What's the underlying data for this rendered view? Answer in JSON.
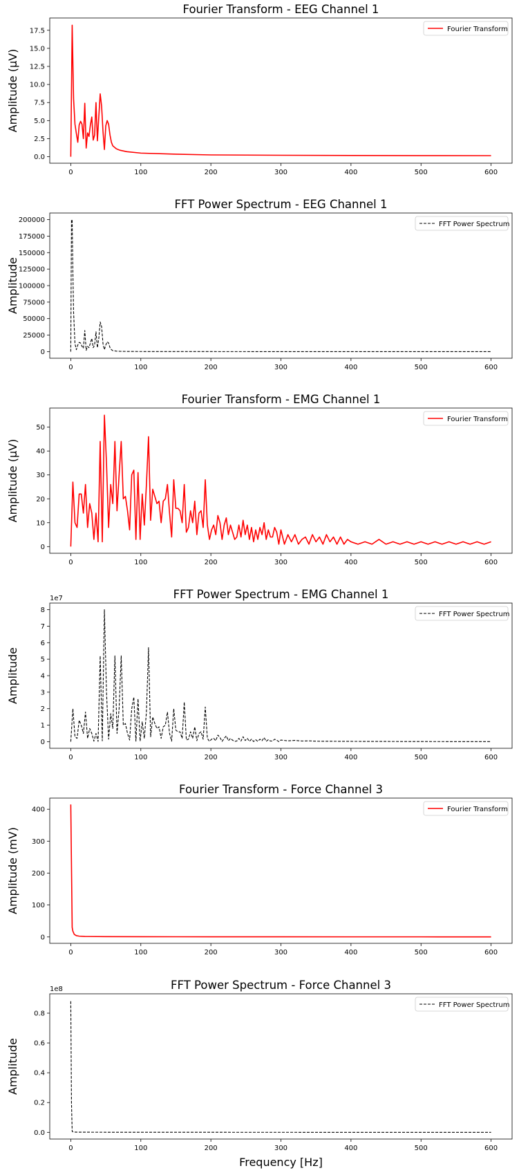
{
  "chart_data": [
    {
      "type": "line",
      "title": "Fourier Transform - EEG Channel 1",
      "xlabel": "",
      "ylabel": "Amplitude (µV)",
      "xlim": [
        -30,
        630
      ],
      "ylim": [
        -0.9,
        19.2
      ],
      "xticks": [
        0,
        100,
        200,
        300,
        400,
        500,
        600
      ],
      "xtick_labels": [
        "0",
        "100",
        "200",
        "300",
        "400",
        "500",
        "600"
      ],
      "yticks": [
        0,
        2.5,
        5,
        7.5,
        10,
        12.5,
        15,
        17.5
      ],
      "ytick_labels": [
        "0.0",
        "2.5",
        "5.0",
        "7.5",
        "10.0",
        "12.5",
        "15.0",
        "17.5"
      ],
      "offset_text": "",
      "grid": false,
      "legend_position": "top-right",
      "series": [
        {
          "name": "Fourier Transform",
          "color": "#ff0000",
          "dash": "solid",
          "x": [
            0,
            2,
            4,
            6,
            8,
            10,
            12,
            14,
            16,
            18,
            20,
            22,
            24,
            26,
            28,
            30,
            32,
            34,
            36,
            38,
            40,
            42,
            44,
            46,
            48,
            50,
            52,
            54,
            56,
            58,
            60,
            65,
            70,
            80,
            100,
            150,
            200,
            300,
            400,
            500,
            600
          ],
          "y": [
            0,
            18.2,
            8,
            4.5,
            3.2,
            2,
            4.4,
            4.9,
            4.5,
            2.5,
            7.4,
            1.2,
            3.3,
            2.8,
            4.4,
            5.5,
            2.3,
            3,
            7.5,
            2.2,
            5.5,
            8.7,
            7,
            3.5,
            1,
            4.3,
            5,
            4.5,
            3,
            2,
            1.5,
            1.1,
            0.9,
            0.7,
            0.5,
            0.35,
            0.25,
            0.2,
            0.17,
            0.15,
            0.14
          ]
        }
      ]
    },
    {
      "type": "line",
      "title": "FFT Power Spectrum - EEG Channel 1",
      "xlabel": "",
      "ylabel": "Amplitude",
      "xlim": [
        -30,
        630
      ],
      "ylim": [
        -10000,
        210000
      ],
      "xticks": [
        0,
        100,
        200,
        300,
        400,
        500,
        600
      ],
      "xtick_labels": [
        "0",
        "100",
        "200",
        "300",
        "400",
        "500",
        "600"
      ],
      "yticks": [
        0,
        25000,
        50000,
        75000,
        100000,
        125000,
        150000,
        175000,
        200000
      ],
      "ytick_labels": [
        "0",
        "25000",
        "50000",
        "75000",
        "100000",
        "125000",
        "150000",
        "175000",
        "200000"
      ],
      "offset_text": "",
      "grid": false,
      "legend_position": "top-right",
      "series": [
        {
          "name": "FFT Power Spectrum",
          "color": "#000000",
          "dash": "dashed",
          "x": [
            0,
            1,
            2,
            3,
            4,
            6,
            8,
            10,
            12,
            14,
            16,
            18,
            20,
            22,
            24,
            26,
            28,
            30,
            32,
            34,
            36,
            38,
            40,
            42,
            44,
            46,
            48,
            50,
            52,
            54,
            56,
            58,
            60,
            65,
            70,
            80,
            100,
            200,
            300,
            400,
            500,
            600
          ],
          "y": [
            0,
            199000,
            200000,
            120000,
            60000,
            12000,
            3000,
            10000,
            14000,
            13000,
            8000,
            5000,
            32000,
            2000,
            8000,
            6000,
            13000,
            20000,
            6000,
            10000,
            30000,
            6000,
            20000,
            45000,
            38000,
            12000,
            3000,
            10000,
            15000,
            13000,
            6000,
            3000,
            1500,
            800,
            500,
            300,
            200,
            100,
            50,
            30,
            20,
            10
          ]
        }
      ]
    },
    {
      "type": "line",
      "title": "Fourier Transform - EMG Channel 1",
      "xlabel": "",
      "ylabel": "Amplitude (µV)",
      "xlim": [
        -30,
        630
      ],
      "ylim": [
        -2.8,
        58
      ],
      "xticks": [
        0,
        100,
        200,
        300,
        400,
        500,
        600
      ],
      "xtick_labels": [
        "0",
        "100",
        "200",
        "300",
        "400",
        "500",
        "600"
      ],
      "yticks": [
        0,
        10,
        20,
        30,
        40,
        50
      ],
      "ytick_labels": [
        "0",
        "10",
        "20",
        "30",
        "40",
        "50"
      ],
      "offset_text": "",
      "grid": false,
      "legend_position": "top-right",
      "series": [
        {
          "name": "Fourier Transform",
          "color": "#ff0000",
          "dash": "solid",
          "x": [
            0,
            3,
            6,
            9,
            12,
            15,
            18,
            21,
            24,
            27,
            30,
            33,
            36,
            39,
            42,
            45,
            48,
            51,
            54,
            57,
            60,
            63,
            66,
            69,
            72,
            75,
            78,
            81,
            84,
            87,
            90,
            93,
            96,
            99,
            102,
            105,
            108,
            111,
            114,
            117,
            120,
            123,
            126,
            129,
            132,
            135,
            138,
            141,
            144,
            147,
            150,
            153,
            156,
            159,
            162,
            165,
            168,
            171,
            174,
            177,
            180,
            183,
            186,
            189,
            192,
            195,
            198,
            201,
            204,
            207,
            210,
            213,
            216,
            219,
            222,
            225,
            228,
            231,
            234,
            237,
            240,
            243,
            246,
            249,
            252,
            255,
            258,
            261,
            264,
            267,
            270,
            273,
            276,
            279,
            282,
            285,
            288,
            291,
            294,
            297,
            300,
            305,
            310,
            315,
            320,
            325,
            330,
            335,
            340,
            345,
            350,
            355,
            360,
            365,
            370,
            375,
            380,
            385,
            390,
            395,
            400,
            410,
            420,
            430,
            440,
            450,
            460,
            470,
            480,
            490,
            500,
            510,
            520,
            530,
            540,
            550,
            560,
            570,
            580,
            590,
            600
          ],
          "y": [
            0,
            27,
            10,
            8,
            22,
            22,
            14,
            26,
            8,
            18,
            14,
            3,
            14,
            2,
            44,
            2,
            55,
            35,
            8,
            26,
            18,
            44,
            15,
            30,
            44,
            20,
            21,
            15,
            7,
            30,
            32,
            3,
            31,
            3,
            22,
            9,
            26,
            46,
            11,
            24,
            21,
            18,
            19,
            10,
            19,
            20,
            26,
            14,
            4,
            28,
            16,
            16,
            15,
            10,
            26,
            6,
            8,
            15,
            10,
            19,
            5,
            14,
            15,
            8,
            28,
            9,
            3,
            7,
            9,
            5,
            13,
            10,
            3,
            9,
            12,
            5,
            9,
            6,
            3,
            4,
            9,
            4,
            11,
            5,
            9,
            3,
            8,
            2,
            7,
            3,
            8,
            5,
            10,
            3,
            7,
            4,
            4,
            8,
            6,
            1,
            7,
            1,
            5,
            2,
            5,
            1,
            3,
            4,
            1,
            5,
            2,
            4,
            1,
            5,
            2,
            4,
            1,
            4,
            1,
            3,
            2,
            1,
            2,
            1,
            3,
            1,
            2,
            1,
            2,
            1,
            2,
            1,
            2,
            1,
            2,
            1,
            2,
            1,
            2,
            1,
            2
          ]
        }
      ]
    },
    {
      "type": "line",
      "title": "FFT Power Spectrum - EMG Channel 1",
      "xlabel": "",
      "ylabel": "Amplitude",
      "xlim": [
        -30,
        630
      ],
      "ylim": [
        -4000000,
        84000000
      ],
      "xticks": [
        0,
        100,
        200,
        300,
        400,
        500,
        600
      ],
      "xtick_labels": [
        "0",
        "100",
        "200",
        "300",
        "400",
        "500",
        "600"
      ],
      "yticks": [
        0,
        10000000,
        20000000,
        30000000,
        40000000,
        50000000,
        60000000,
        70000000,
        80000000
      ],
      "ytick_labels": [
        "0",
        "1",
        "2",
        "3",
        "4",
        "5",
        "6",
        "7",
        "8"
      ],
      "offset_text": "1e7",
      "grid": false,
      "legend_position": "top-right",
      "series": [
        {
          "name": "FFT Power Spectrum",
          "color": "#000000",
          "dash": "dashed",
          "x": [
            0,
            3,
            6,
            9,
            12,
            15,
            18,
            21,
            24,
            27,
            30,
            33,
            36,
            39,
            42,
            45,
            48,
            51,
            54,
            57,
            60,
            63,
            66,
            69,
            72,
            75,
            78,
            81,
            84,
            87,
            90,
            93,
            96,
            99,
            102,
            105,
            108,
            111,
            114,
            117,
            120,
            123,
            126,
            129,
            132,
            135,
            138,
            141,
            144,
            147,
            150,
            153,
            156,
            159,
            162,
            165,
            168,
            171,
            174,
            177,
            180,
            183,
            186,
            189,
            192,
            195,
            198,
            201,
            204,
            207,
            210,
            213,
            216,
            219,
            222,
            225,
            228,
            231,
            234,
            237,
            240,
            243,
            246,
            249,
            252,
            255,
            258,
            261,
            264,
            267,
            270,
            273,
            276,
            279,
            282,
            285,
            288,
            291,
            294,
            297,
            300,
            310,
            320,
            330,
            340,
            350,
            400,
            500,
            600
          ],
          "y": [
            0,
            20000000,
            3000000,
            2000000,
            13000000,
            10000000,
            5000000,
            18000000,
            2000000,
            8000000,
            5000000,
            300000,
            5000000,
            200000,
            52000000,
            500000,
            80000000,
            30000000,
            1500000,
            17000000,
            8000000,
            52000000,
            5000000,
            20000000,
            52000000,
            10000000,
            11000000,
            5000000,
            1000000,
            20000000,
            27000000,
            300000,
            26000000,
            300000,
            12000000,
            2000000,
            18000000,
            57000000,
            3000000,
            15000000,
            11000000,
            8000000,
            9000000,
            2000000,
            9000000,
            10000000,
            18000000,
            5000000,
            300000,
            20000000,
            7000000,
            6000000,
            6000000,
            2000000,
            24000000,
            1000000,
            1500000,
            6000000,
            2000000,
            9000000,
            600000,
            5000000,
            6000000,
            1500000,
            21000000,
            2000000,
            200000,
            1500000,
            2000000,
            600000,
            4000000,
            2500000,
            200000,
            2000000,
            3500000,
            600000,
            2000000,
            900000,
            200000,
            400000,
            2000000,
            400000,
            3000000,
            700000,
            2000000,
            200000,
            1500000,
            100000,
            1200000,
            200000,
            1500000,
            600000,
            2500000,
            200000,
            1200000,
            400000,
            400000,
            1500000,
            900000,
            50000,
            1000000,
            500000,
            800000,
            400000,
            500000,
            300000,
            200000,
            100000,
            50000
          ]
        }
      ]
    },
    {
      "type": "line",
      "title": "Fourier Transform - Force Channel 3",
      "xlabel": "",
      "ylabel": "Amplitude (mV)",
      "xlim": [
        -30,
        630
      ],
      "ylim": [
        -20,
        435
      ],
      "xticks": [
        0,
        100,
        200,
        300,
        400,
        500,
        600
      ],
      "xtick_labels": [
        "0",
        "100",
        "200",
        "300",
        "400",
        "500",
        "600"
      ],
      "yticks": [
        0,
        100,
        200,
        300,
        400
      ],
      "ytick_labels": [
        "0",
        "100",
        "200",
        "300",
        "400"
      ],
      "offset_text": "",
      "grid": false,
      "legend_position": "top-right",
      "series": [
        {
          "name": "Fourier Transform",
          "color": "#ff0000",
          "dash": "solid",
          "x": [
            0,
            2,
            3,
            5,
            8,
            12,
            20,
            50,
            100,
            200,
            300,
            400,
            500,
            600
          ],
          "y": [
            415,
            30,
            18,
            8,
            4,
            2.5,
            1.5,
            1,
            0.7,
            0.5,
            0.4,
            0.3,
            0.3,
            0.2
          ]
        }
      ]
    },
    {
      "type": "line",
      "title": "FFT Power Spectrum - Force Channel 3",
      "xlabel": "Frequency [Hz]",
      "ylabel": "Amplitude",
      "xlim": [
        -30,
        630
      ],
      "ylim": [
        -4500000,
        93000000
      ],
      "xticks": [
        0,
        100,
        200,
        300,
        400,
        500,
        600
      ],
      "xtick_labels": [
        "0",
        "100",
        "200",
        "300",
        "400",
        "500",
        "600"
      ],
      "yticks": [
        0,
        20000000,
        40000000,
        60000000,
        80000000
      ],
      "ytick_labels": [
        "0.0",
        "0.2",
        "0.4",
        "0.6",
        "0.8"
      ],
      "offset_text": "1e8",
      "grid": false,
      "legend_position": "top-right",
      "series": [
        {
          "name": "FFT Power Spectrum",
          "color": "#000000",
          "dash": "dashed",
          "x": [
            0,
            1,
            2,
            4,
            10,
            100,
            300,
            600
          ],
          "y": [
            88000000,
            20000000,
            600000,
            200000,
            100000,
            50000,
            20000,
            10000
          ]
        }
      ]
    }
  ]
}
